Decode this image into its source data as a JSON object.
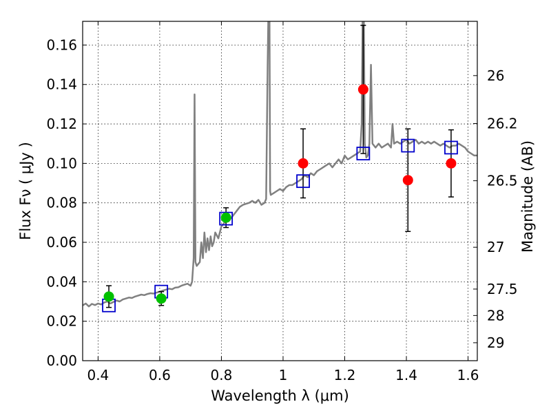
{
  "chart_data": {
    "type": "scatter",
    "title": "",
    "xlabel": "Wavelength  λ (μm)",
    "ylabel": "Flux  Fν  ( μJy )",
    "y2label": "Magnitude (AB)",
    "xlim": [
      0.35,
      1.63
    ],
    "ylim": [
      0.0,
      0.172
    ],
    "grid": true,
    "x_ticks": [
      {
        "value": 0.4,
        "label": "0.4"
      },
      {
        "value": 0.6,
        "label": "0.6"
      },
      {
        "value": 0.8,
        "label": "0.8"
      },
      {
        "value": 1.0,
        "label": "1"
      },
      {
        "value": 1.2,
        "label": "1.2"
      },
      {
        "value": 1.4,
        "label": "1.4"
      },
      {
        "value": 1.6,
        "label": "1.6"
      }
    ],
    "y_ticks": [
      {
        "value": 0.0,
        "label": "0.00"
      },
      {
        "value": 0.02,
        "label": "0.02"
      },
      {
        "value": 0.04,
        "label": "0.04"
      },
      {
        "value": 0.06,
        "label": "0.06"
      },
      {
        "value": 0.08,
        "label": "0.08"
      },
      {
        "value": 0.1,
        "label": "0.10"
      },
      {
        "value": 0.12,
        "label": "0.12"
      },
      {
        "value": 0.14,
        "label": "0.14"
      },
      {
        "value": 0.16,
        "label": "0.16"
      }
    ],
    "mag_ticks": [
      {
        "flux": 0.1445,
        "label": "26"
      },
      {
        "flux": 0.1202,
        "label": "26.2"
      },
      {
        "flux": 0.0912,
        "label": "26.5"
      },
      {
        "flux": 0.0575,
        "label": "27"
      },
      {
        "flux": 0.0363,
        "label": "27.5"
      },
      {
        "flux": 0.0229,
        "label": "28"
      },
      {
        "flux": 0.0091,
        "label": "29"
      }
    ],
    "series": [
      {
        "kind": "spectrum",
        "color": "#808080",
        "points": [
          [
            0.35,
            0.028
          ],
          [
            0.36,
            0.029
          ],
          [
            0.37,
            0.0275
          ],
          [
            0.38,
            0.0288
          ],
          [
            0.39,
            0.0282
          ],
          [
            0.4,
            0.029
          ],
          [
            0.41,
            0.0285
          ],
          [
            0.42,
            0.0295
          ],
          [
            0.43,
            0.03
          ],
          [
            0.44,
            0.029
          ],
          [
            0.45,
            0.0298
          ],
          [
            0.46,
            0.0305
          ],
          [
            0.47,
            0.03
          ],
          [
            0.48,
            0.031
          ],
          [
            0.49,
            0.0315
          ],
          [
            0.5,
            0.032
          ],
          [
            0.51,
            0.0318
          ],
          [
            0.52,
            0.0325
          ],
          [
            0.53,
            0.033
          ],
          [
            0.54,
            0.0335
          ],
          [
            0.55,
            0.0332
          ],
          [
            0.56,
            0.0338
          ],
          [
            0.57,
            0.0342
          ],
          [
            0.58,
            0.034
          ],
          [
            0.59,
            0.0345
          ],
          [
            0.6,
            0.035
          ],
          [
            0.61,
            0.0355
          ],
          [
            0.62,
            0.036
          ],
          [
            0.63,
            0.0365
          ],
          [
            0.64,
            0.0362
          ],
          [
            0.65,
            0.037
          ],
          [
            0.66,
            0.0372
          ],
          [
            0.67,
            0.038
          ],
          [
            0.68,
            0.0385
          ],
          [
            0.69,
            0.039
          ],
          [
            0.7,
            0.038
          ],
          [
            0.705,
            0.04
          ],
          [
            0.71,
            0.052
          ],
          [
            0.713,
            0.135
          ],
          [
            0.716,
            0.05
          ],
          [
            0.72,
            0.048
          ],
          [
            0.73,
            0.05
          ],
          [
            0.735,
            0.06
          ],
          [
            0.74,
            0.052
          ],
          [
            0.745,
            0.065
          ],
          [
            0.75,
            0.055
          ],
          [
            0.755,
            0.062
          ],
          [
            0.76,
            0.056
          ],
          [
            0.765,
            0.063
          ],
          [
            0.77,
            0.058
          ],
          [
            0.775,
            0.06
          ],
          [
            0.78,
            0.065
          ],
          [
            0.79,
            0.062
          ],
          [
            0.8,
            0.068
          ],
          [
            0.81,
            0.07
          ],
          [
            0.82,
            0.071
          ],
          [
            0.83,
            0.072
          ],
          [
            0.84,
            0.074
          ],
          [
            0.85,
            0.076
          ],
          [
            0.86,
            0.078
          ],
          [
            0.87,
            0.079
          ],
          [
            0.88,
            0.0795
          ],
          [
            0.89,
            0.08
          ],
          [
            0.9,
            0.081
          ],
          [
            0.91,
            0.08
          ],
          [
            0.92,
            0.0815
          ],
          [
            0.93,
            0.079
          ],
          [
            0.94,
            0.08
          ],
          [
            0.945,
            0.082
          ],
          [
            0.95,
            0.15
          ],
          [
            0.952,
            0.172
          ],
          [
            0.956,
            0.172
          ],
          [
            0.958,
            0.086
          ],
          [
            0.96,
            0.084
          ],
          [
            0.97,
            0.085
          ],
          [
            0.98,
            0.086
          ],
          [
            0.99,
            0.087
          ],
          [
            1.0,
            0.086
          ],
          [
            1.01,
            0.088
          ],
          [
            1.02,
            0.089
          ],
          [
            1.03,
            0.089
          ],
          [
            1.04,
            0.09
          ],
          [
            1.05,
            0.091
          ],
          [
            1.06,
            0.092
          ],
          [
            1.07,
            0.094
          ],
          [
            1.08,
            0.093
          ],
          [
            1.09,
            0.095
          ],
          [
            1.1,
            0.094
          ],
          [
            1.11,
            0.096
          ],
          [
            1.12,
            0.097
          ],
          [
            1.13,
            0.098
          ],
          [
            1.14,
            0.099
          ],
          [
            1.15,
            0.1
          ],
          [
            1.16,
            0.098
          ],
          [
            1.17,
            0.1
          ],
          [
            1.18,
            0.102
          ],
          [
            1.19,
            0.1
          ],
          [
            1.2,
            0.104
          ],
          [
            1.21,
            0.102
          ],
          [
            1.22,
            0.103
          ],
          [
            1.23,
            0.104
          ],
          [
            1.24,
            0.105
          ],
          [
            1.25,
            0.106
          ],
          [
            1.255,
            0.12
          ],
          [
            1.258,
            0.172
          ],
          [
            1.262,
            0.172
          ],
          [
            1.265,
            0.11
          ],
          [
            1.27,
            0.103
          ],
          [
            1.275,
            0.104
          ],
          [
            1.28,
            0.11
          ],
          [
            1.285,
            0.15
          ],
          [
            1.29,
            0.11
          ],
          [
            1.3,
            0.108
          ],
          [
            1.31,
            0.11
          ],
          [
            1.32,
            0.108
          ],
          [
            1.33,
            0.109
          ],
          [
            1.34,
            0.11
          ],
          [
            1.35,
            0.108
          ],
          [
            1.355,
            0.12
          ],
          [
            1.36,
            0.11
          ],
          [
            1.37,
            0.111
          ],
          [
            1.38,
            0.11
          ],
          [
            1.39,
            0.111
          ],
          [
            1.4,
            0.112
          ],
          [
            1.41,
            0.11
          ],
          [
            1.42,
            0.111
          ],
          [
            1.43,
            0.112
          ],
          [
            1.44,
            0.11
          ],
          [
            1.45,
            0.111
          ],
          [
            1.46,
            0.11
          ],
          [
            1.47,
            0.111
          ],
          [
            1.48,
            0.11
          ],
          [
            1.49,
            0.111
          ],
          [
            1.5,
            0.11
          ],
          [
            1.51,
            0.109
          ],
          [
            1.52,
            0.11
          ],
          [
            1.53,
            0.109
          ],
          [
            1.54,
            0.108
          ],
          [
            1.55,
            0.109
          ],
          [
            1.56,
            0.109
          ],
          [
            1.57,
            0.11
          ],
          [
            1.58,
            0.109
          ],
          [
            1.59,
            0.108
          ],
          [
            1.6,
            0.106
          ],
          [
            1.61,
            0.105
          ],
          [
            1.62,
            0.104
          ],
          [
            1.63,
            0.104
          ]
        ]
      },
      {
        "kind": "model_boxes",
        "color": "#0000cc",
        "points": [
          [
            0.435,
            0.028
          ],
          [
            0.605,
            0.035
          ],
          [
            0.815,
            0.072
          ],
          [
            1.065,
            0.091
          ],
          [
            1.26,
            0.105
          ],
          [
            1.405,
            0.109
          ],
          [
            1.545,
            0.108
          ]
        ]
      },
      {
        "kind": "measured",
        "color": "#00c000",
        "points": [
          {
            "x": 0.435,
            "y": 0.0325,
            "yerr": 0.0055
          },
          {
            "x": 0.605,
            "y": 0.0315,
            "yerr": 0.0035
          },
          {
            "x": 0.815,
            "y": 0.0725,
            "yerr": 0.005
          }
        ]
      },
      {
        "kind": "measured",
        "color": "#ff0000",
        "points": [
          {
            "x": 1.065,
            "y": 0.1,
            "yerr": 0.0175
          },
          {
            "x": 1.26,
            "y": 0.1375,
            "yerr": 0.0325
          },
          {
            "x": 1.405,
            "y": 0.0915,
            "yerr": 0.026
          },
          {
            "x": 1.545,
            "y": 0.1,
            "yerr": 0.017
          }
        ]
      }
    ]
  }
}
